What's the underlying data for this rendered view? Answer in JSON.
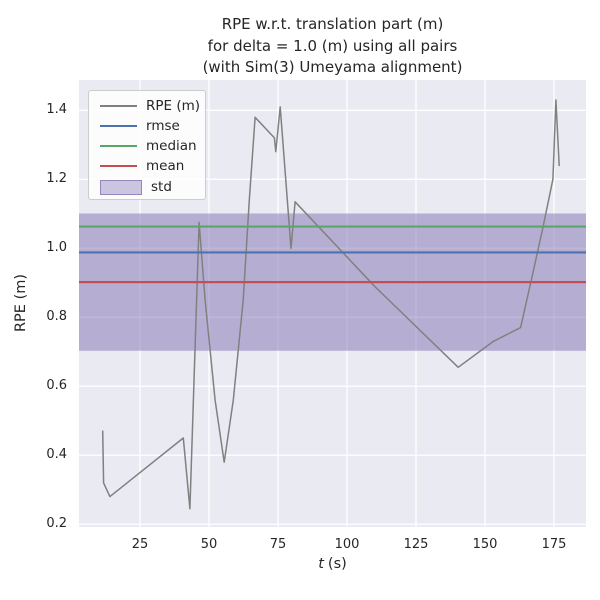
{
  "chart_data": {
    "type": "line",
    "title_lines": [
      "RPE w.r.t. translation part (m)",
      "for delta = 1.0 (m) using all pairs",
      "(with Sim(3) Umeyama alignment)"
    ],
    "ylabel": "RPE (m)",
    "xlabel_var": "t",
    "xlabel_unit": "(s)",
    "xticks": [
      "25",
      "50",
      "75",
      "100",
      "125",
      "150",
      "175"
    ],
    "yticks": [
      "0.2",
      "0.4",
      "0.6",
      "0.8",
      "1.0",
      "1.2",
      "1.4"
    ],
    "xlim": [
      2.9,
      186.6
    ],
    "ylim": [
      0.192,
      1.488
    ],
    "grid": true,
    "axes_bg": "#eaeaf2",
    "grid_color": "#ffffff",
    "text_color": "#262626",
    "legend_position": "upper-left",
    "series": [
      {
        "name": "RPE (m)",
        "kind": "line",
        "color": "#808080",
        "points": [
          [
            11.5,
            0.47
          ],
          [
            11.8,
            0.32
          ],
          [
            14.1,
            0.28
          ],
          [
            40.7,
            0.45
          ],
          [
            43.1,
            0.245
          ],
          [
            46.4,
            1.075
          ],
          [
            48.6,
            0.85
          ],
          [
            52.2,
            0.56
          ],
          [
            55.5,
            0.38
          ],
          [
            58.8,
            0.56
          ],
          [
            62.4,
            0.85
          ],
          [
            64.6,
            1.14
          ],
          [
            66.7,
            1.38
          ],
          [
            73.7,
            1.32
          ],
          [
            74.2,
            1.28
          ],
          [
            75.8,
            1.41
          ],
          [
            79.7,
            1.0
          ],
          [
            81.2,
            1.135
          ],
          [
            110.0,
            0.89
          ],
          [
            140.3,
            0.655
          ],
          [
            153.0,
            0.73
          ],
          [
            162.9,
            0.77
          ],
          [
            167.4,
            0.93
          ],
          [
            171.0,
            1.06
          ],
          [
            174.6,
            1.2
          ],
          [
            175.7,
            1.43
          ],
          [
            176.9,
            1.24
          ]
        ]
      },
      {
        "name": "rmse",
        "kind": "hline",
        "color": "#4c72b0",
        "value": 0.988
      },
      {
        "name": "median",
        "kind": "hline",
        "color": "#55a868",
        "value": 1.063
      },
      {
        "name": "mean",
        "kind": "hline",
        "color": "#c44e52",
        "value": 0.902
      },
      {
        "name": "std",
        "kind": "band",
        "color": "#8172b2",
        "range": [
          0.703,
          1.101
        ]
      }
    ]
  }
}
